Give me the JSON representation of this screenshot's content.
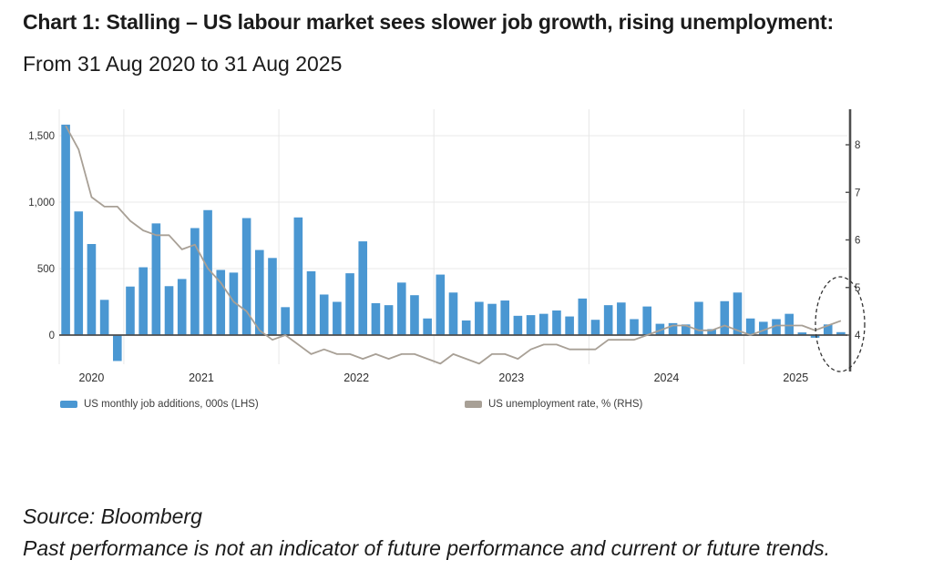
{
  "header": {
    "title": "Chart 1: Stalling – US labour market sees slower job growth, rising unemployment:",
    "subtitle": "From 31 Aug 2020 to 31 Aug 2025"
  },
  "footer": {
    "source": "Source: Bloomberg",
    "disclaimer": "Past performance is not an indicator of future performance and current or future trends."
  },
  "legend": {
    "items": [
      {
        "label": "US monthly job additions, 000s (LHS)",
        "color": "#4a97d2"
      },
      {
        "label": "US unemployment rate, % (RHS)",
        "color": "#a8a096"
      }
    ]
  },
  "colors": {
    "bar": "#4a97d2",
    "line": "#a8a096",
    "grid": "#e8e8e8",
    "axis": "#4d4d4d",
    "tick_text": "#333333",
    "annotation": "#333333"
  },
  "chart_data": {
    "type": "bar",
    "subtype": "combo-bar-line",
    "x": {
      "start": "Aug 2020",
      "end": "Aug 2025",
      "frequency": "monthly",
      "n_points": 61
    },
    "x_axis": {
      "year_labels": [
        "2020",
        "2021",
        "2022",
        "2023",
        "2024",
        "2025"
      ]
    },
    "left_axis": {
      "label": "US monthly job additions, 000s",
      "tick_values": [
        0,
        500,
        1000,
        1500
      ],
      "tick_labels": [
        "0",
        "500",
        "1,000",
        "1,500"
      ],
      "range": [
        -300,
        1700
      ]
    },
    "right_axis": {
      "label": "US unemployment rate, %",
      "tick_values": [
        4,
        5,
        6,
        7,
        8
      ],
      "tick_labels": [
        "4",
        "5",
        "6",
        "7",
        "8"
      ],
      "range": [
        3.2,
        8.8
      ]
    },
    "grid": true,
    "legend_position": "bottom",
    "series": [
      {
        "name": "US monthly job additions, 000s (LHS)",
        "type": "bar",
        "axis": "left",
        "color": "#4a97d2",
        "values": [
          1583,
          930,
          685,
          265,
          -195,
          365,
          510,
          840,
          368,
          422,
          805,
          940,
          490,
          470,
          880,
          640,
          580,
          210,
          885,
          480,
          305,
          250,
          465,
          705,
          240,
          225,
          395,
          300,
          125,
          455,
          320,
          110,
          250,
          235,
          260,
          145,
          150,
          160,
          185,
          140,
          275,
          115,
          225,
          245,
          120,
          215,
          85,
          90,
          80,
          250,
          45,
          255,
          320,
          125,
          100,
          120,
          160,
          20,
          -20,
          80,
          22
        ]
      },
      {
        "name": "US unemployment rate, % (RHS)",
        "type": "line",
        "axis": "right",
        "color": "#a8a096",
        "values": [
          8.4,
          7.9,
          6.9,
          6.7,
          6.7,
          6.4,
          6.2,
          6.1,
          6.1,
          5.8,
          5.9,
          5.4,
          5.1,
          4.7,
          4.5,
          4.1,
          3.9,
          4.0,
          3.8,
          3.6,
          3.7,
          3.6,
          3.6,
          3.5,
          3.6,
          3.5,
          3.6,
          3.6,
          3.5,
          3.4,
          3.6,
          3.5,
          3.4,
          3.6,
          3.6,
          3.5,
          3.7,
          3.8,
          3.8,
          3.7,
          3.7,
          3.7,
          3.9,
          3.9,
          3.9,
          4.0,
          4.1,
          4.2,
          4.2,
          4.1,
          4.1,
          4.2,
          4.1,
          4.0,
          4.1,
          4.2,
          4.2,
          4.2,
          4.1,
          4.2,
          4.3
        ]
      }
    ],
    "annotations": [
      {
        "shape": "dashed-ellipse",
        "purpose": "highlights the most recent months of slow job growth and rising unemployment",
        "style": "dashed",
        "color": "#333333"
      }
    ]
  }
}
